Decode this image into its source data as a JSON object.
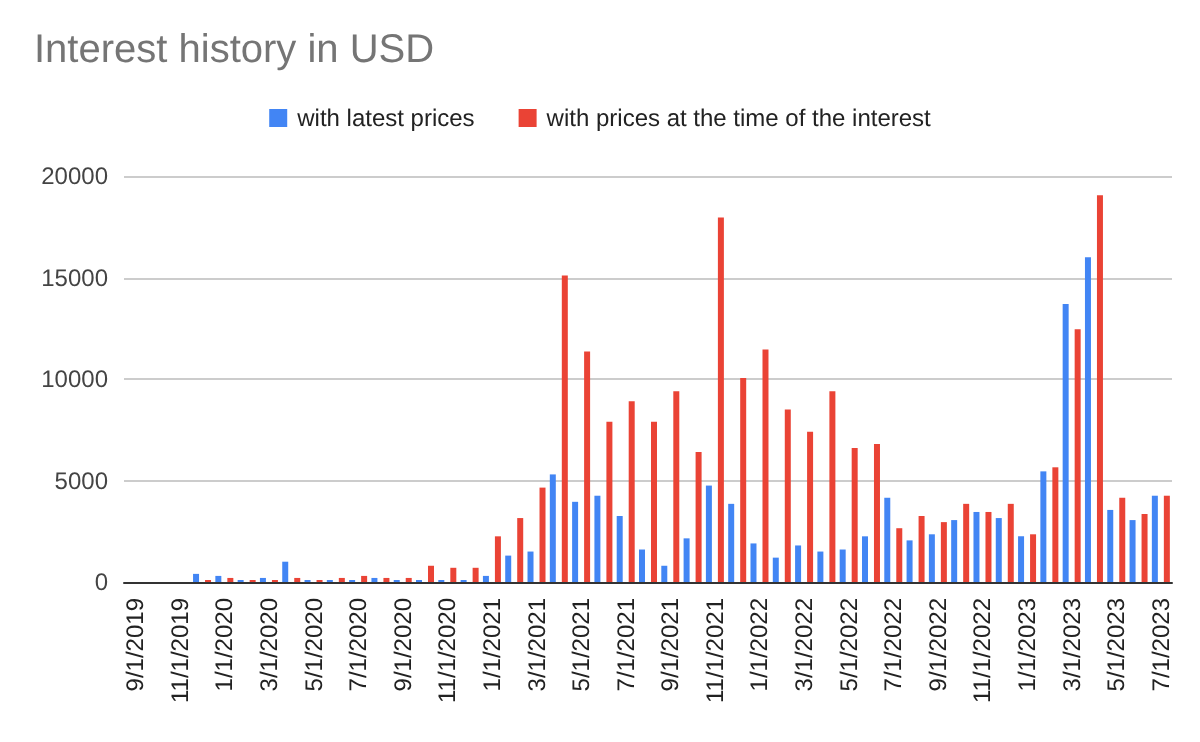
{
  "chart_data": {
    "type": "bar",
    "title": "Interest history in USD",
    "categories": [
      "9/1/2019",
      null,
      "11/1/2019",
      null,
      "1/1/2020",
      null,
      "3/1/2020",
      null,
      "5/1/2020",
      null,
      "7/1/2020",
      null,
      "9/1/2020",
      null,
      "11/1/2020",
      null,
      "1/1/2021",
      null,
      "3/1/2021",
      null,
      "5/1/2021",
      null,
      "7/1/2021",
      null,
      "9/1/2021",
      null,
      "11/1/2021",
      null,
      "1/1/2022",
      null,
      "3/1/2022",
      null,
      "5/1/2022",
      null,
      "7/1/2022",
      null,
      "9/1/2022",
      null,
      "11/1/2022",
      null,
      "1/1/2023",
      null,
      "3/1/2023",
      null,
      "5/1/2023",
      null,
      "7/1/2023"
    ],
    "series": [
      {
        "name": "with latest prices",
        "color": "#4285f4",
        "values": [
          null,
          null,
          null,
          400,
          300,
          100,
          200,
          1000,
          100,
          100,
          100,
          200,
          100,
          100,
          100,
          100,
          300,
          1300,
          1500,
          5300,
          3950,
          4250,
          3250,
          1600,
          800,
          2150,
          4750,
          3850,
          1900,
          1200,
          1800,
          1500,
          1600,
          2250,
          4150,
          2050,
          2350,
          3050,
          3450,
          3150,
          2250,
          5450,
          13700,
          16000,
          3550,
          3050,
          4250
        ]
      },
      {
        "name": "with prices at the time of the interest",
        "color": "#ea4335",
        "values": [
          null,
          null,
          null,
          100,
          200,
          100,
          100,
          200,
          100,
          200,
          300,
          200,
          200,
          800,
          700,
          700,
          2250,
          3150,
          4650,
          15100,
          11350,
          7900,
          8900,
          7900,
          9400,
          6400,
          17950,
          10050,
          11450,
          8500,
          7400,
          9400,
          6600,
          6800,
          2650,
          3250,
          2950,
          3850,
          3450,
          3850,
          2350,
          5650,
          12450,
          19050,
          4150,
          3350,
          4250
        ]
      }
    ],
    "ylim": [
      0,
      20000
    ],
    "yticks": [
      0,
      5000,
      10000,
      15000,
      20000
    ],
    "grid": "y",
    "legend": "top"
  }
}
